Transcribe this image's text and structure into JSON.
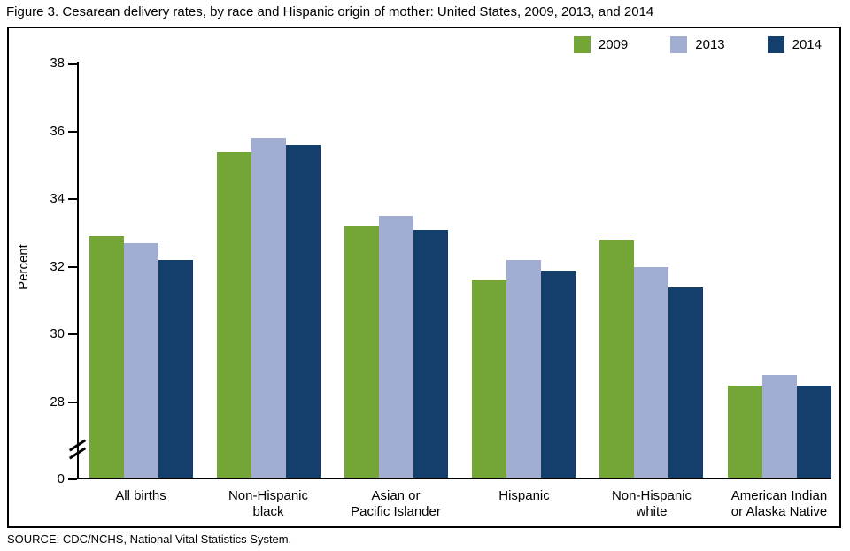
{
  "title": "Figure 3. Cesarean delivery rates, by race and Hispanic origin of mother: United States, 2009, 2013, and 2014",
  "source": "SOURCE: CDC/NCHS, National Vital Statistics System.",
  "chart_data": {
    "type": "bar",
    "title": "Figure 3. Cesarean delivery rates, by race and Hispanic origin of mother: United States, 2009, 2013, and 2014",
    "ylabel": "Percent",
    "xlabel": "",
    "grid": false,
    "legend_position": "top-right",
    "axis_break": true,
    "yticks": [
      0,
      28,
      30,
      32,
      34,
      36,
      38
    ],
    "ylim": [
      0,
      38
    ],
    "display_range": [
      28,
      38
    ],
    "categories": [
      "All births",
      "Non-Hispanic black",
      "Asian or Pacific Islander",
      "Hispanic",
      "Non-Hispanic white",
      "American Indian or Alaska Native"
    ],
    "category_lines": [
      [
        "All births"
      ],
      [
        "Non-Hispanic",
        "black"
      ],
      [
        "Asian or",
        "Pacific Islander"
      ],
      [
        "Hispanic"
      ],
      [
        "Non-Hispanic",
        "white"
      ],
      [
        "American Indian",
        "or Alaska Native"
      ]
    ],
    "series": [
      {
        "name": "2009",
        "color": "#74a537",
        "values": [
          32.9,
          35.4,
          33.2,
          31.6,
          32.8,
          28.5
        ]
      },
      {
        "name": "2013",
        "color": "#a1aed1",
        "values": [
          32.7,
          35.8,
          33.5,
          32.2,
          32.0,
          28.8
        ]
      },
      {
        "name": "2014",
        "color": "#143f6d",
        "values": [
          32.2,
          35.6,
          33.1,
          31.9,
          31.4,
          28.5
        ]
      }
    ]
  }
}
